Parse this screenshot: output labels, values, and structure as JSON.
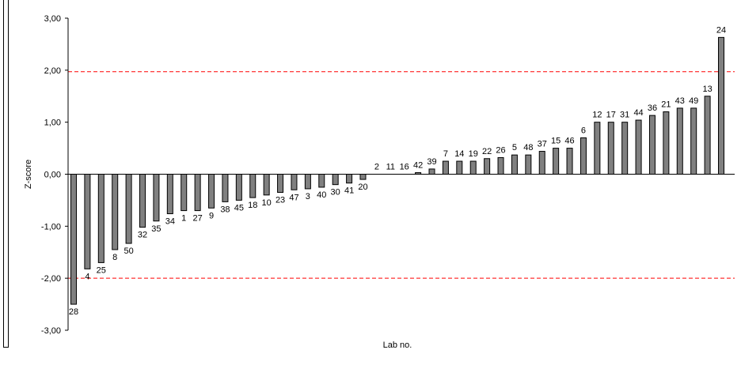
{
  "chart_data": {
    "type": "bar",
    "xlabel": "Lab no.",
    "ylabel": "Z-score",
    "ylim": [
      -3,
      3
    ],
    "yticks": [
      "3,00",
      "2,00",
      "1,00",
      "0,00",
      "-1,00",
      "-2,00",
      "-3,00"
    ],
    "ytick_values": [
      3,
      2,
      1,
      0,
      -1,
      -2,
      -3
    ],
    "reference_lines": [
      1.97,
      -2.0
    ],
    "bar_color": "#808080",
    "ref_line_color": "#ff0000",
    "grid": false,
    "categories": [
      "28",
      "4",
      "25",
      "8",
      "50",
      "32",
      "35",
      "34",
      "1",
      "27",
      "9",
      "38",
      "45",
      "18",
      "10",
      "23",
      "47",
      "3",
      "40",
      "30",
      "41",
      "20",
      "2",
      "11",
      "16",
      "42",
      "39",
      "7",
      "14",
      "19",
      "22",
      "26",
      "5",
      "48",
      "37",
      "15",
      "46",
      "6",
      "12",
      "17",
      "31",
      "44",
      "36",
      "21",
      "43",
      "49",
      "13",
      "24"
    ],
    "values": [
      -2.5,
      -1.82,
      -1.7,
      -1.45,
      -1.33,
      -1.02,
      -0.9,
      -0.76,
      -0.7,
      -0.7,
      -0.65,
      -0.53,
      -0.5,
      -0.45,
      -0.4,
      -0.35,
      -0.3,
      -0.28,
      -0.25,
      -0.2,
      -0.17,
      -0.1,
      0.0,
      0.0,
      0.0,
      0.03,
      0.1,
      0.25,
      0.25,
      0.25,
      0.3,
      0.32,
      0.37,
      0.37,
      0.44,
      0.5,
      0.5,
      0.7,
      1.0,
      1.0,
      1.0,
      1.04,
      1.13,
      1.2,
      1.27,
      1.27,
      1.5,
      2.63
    ]
  }
}
